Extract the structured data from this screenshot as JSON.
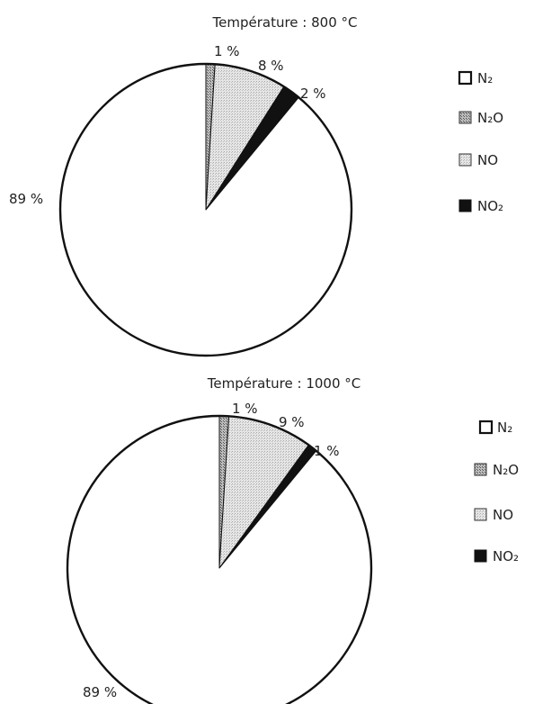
{
  "chart_data": [
    {
      "type": "pie",
      "title": "Température : 800 °C",
      "categories": [
        "N₂",
        "N₂O",
        "NO",
        "NO₂"
      ],
      "values": [
        89,
        1,
        8,
        2
      ],
      "value_labels": [
        "89 %",
        "1 %",
        "8 %",
        "2 %"
      ],
      "legend": "right",
      "colors": [
        "#ffffff",
        "#9a9a9a",
        "#dadada",
        "#111111"
      ]
    },
    {
      "type": "pie",
      "title": "Température : 1000 °C",
      "categories": [
        "N₂",
        "N₂O",
        "NO",
        "NO₂"
      ],
      "values": [
        89,
        1,
        9,
        1
      ],
      "value_labels": [
        "89 %",
        "1 %",
        "9 %",
        "1 %"
      ],
      "legend": "right",
      "colors": [
        "#ffffff",
        "#9a9a9a",
        "#dadada",
        "#111111"
      ]
    }
  ]
}
